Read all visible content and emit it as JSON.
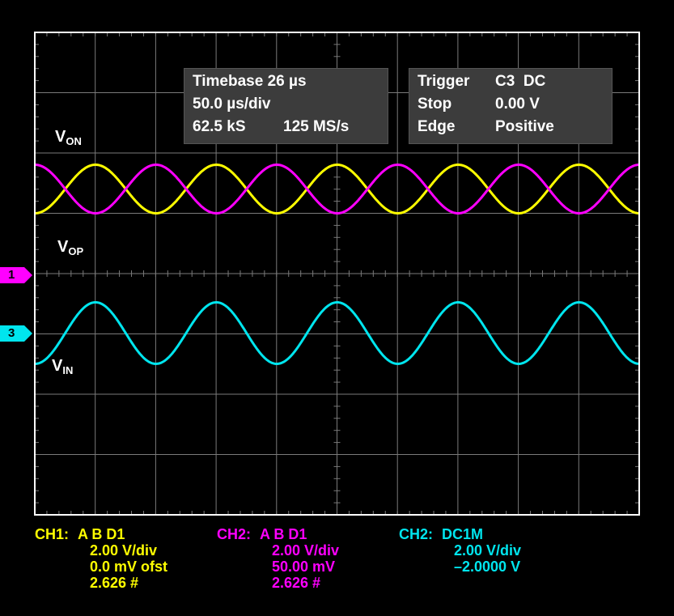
{
  "chart_data": {
    "type": "line",
    "title": "",
    "xlabel": "",
    "ylabel": "",
    "grid": true,
    "x_divisions": 10,
    "y_divisions": 8,
    "series": [
      {
        "name": "VON",
        "channel": "yellow",
        "color": "#ffff00",
        "cycles": 5,
        "phase": "peak-at-start"
      },
      {
        "name": "VOP",
        "channel": "magenta",
        "color": "#ff00ff",
        "cycles": 5,
        "phase": "trough-at-start"
      },
      {
        "name": "VIN",
        "channel": "cyan",
        "color": "#00e5ee",
        "cycles": 5,
        "phase": "peak-at-start"
      }
    ]
  },
  "labels": {
    "von": {
      "main": "V",
      "sub": "ON"
    },
    "vop": {
      "main": "V",
      "sub": "OP"
    },
    "vin": {
      "main": "V",
      "sub": "IN"
    }
  },
  "markers": {
    "ch1": {
      "text": "1",
      "color": "#ff00ff"
    },
    "ch3": {
      "text": "3",
      "color": "#00e5ee"
    }
  },
  "timebase_box": {
    "row1": "Timebase 26 µs",
    "row2": "50.0 µs/div",
    "row3a": "62.5 kS",
    "row3b": "125 MS/s"
  },
  "trigger_box": {
    "row1a": "Trigger",
    "row1b": "C3  DC",
    "row2a": "Stop",
    "row2b": "0.00 V",
    "row3a": "Edge",
    "row3b": "Positive"
  },
  "channels": [
    {
      "head": "CH1:",
      "line1": "A B D1",
      "line2": "2.00 V/div",
      "line3": "0.0 mV ofst",
      "line4": "2.626 #",
      "color": "#ffff00"
    },
    {
      "head": "CH2:",
      "line1": "A B D1",
      "line2": "2.00 V/div",
      "line3": "50.00 mV",
      "line4": "2.626 #",
      "color": "#ff00ff"
    },
    {
      "head": "CH2:",
      "line1": "DC1M",
      "line2": "2.00 V/div",
      "line3": "–2.0000 V",
      "color": "#00e5ee"
    }
  ],
  "colors": {
    "background": "#000000",
    "grid": "#7a7a7a",
    "frame": "#ffffff"
  }
}
